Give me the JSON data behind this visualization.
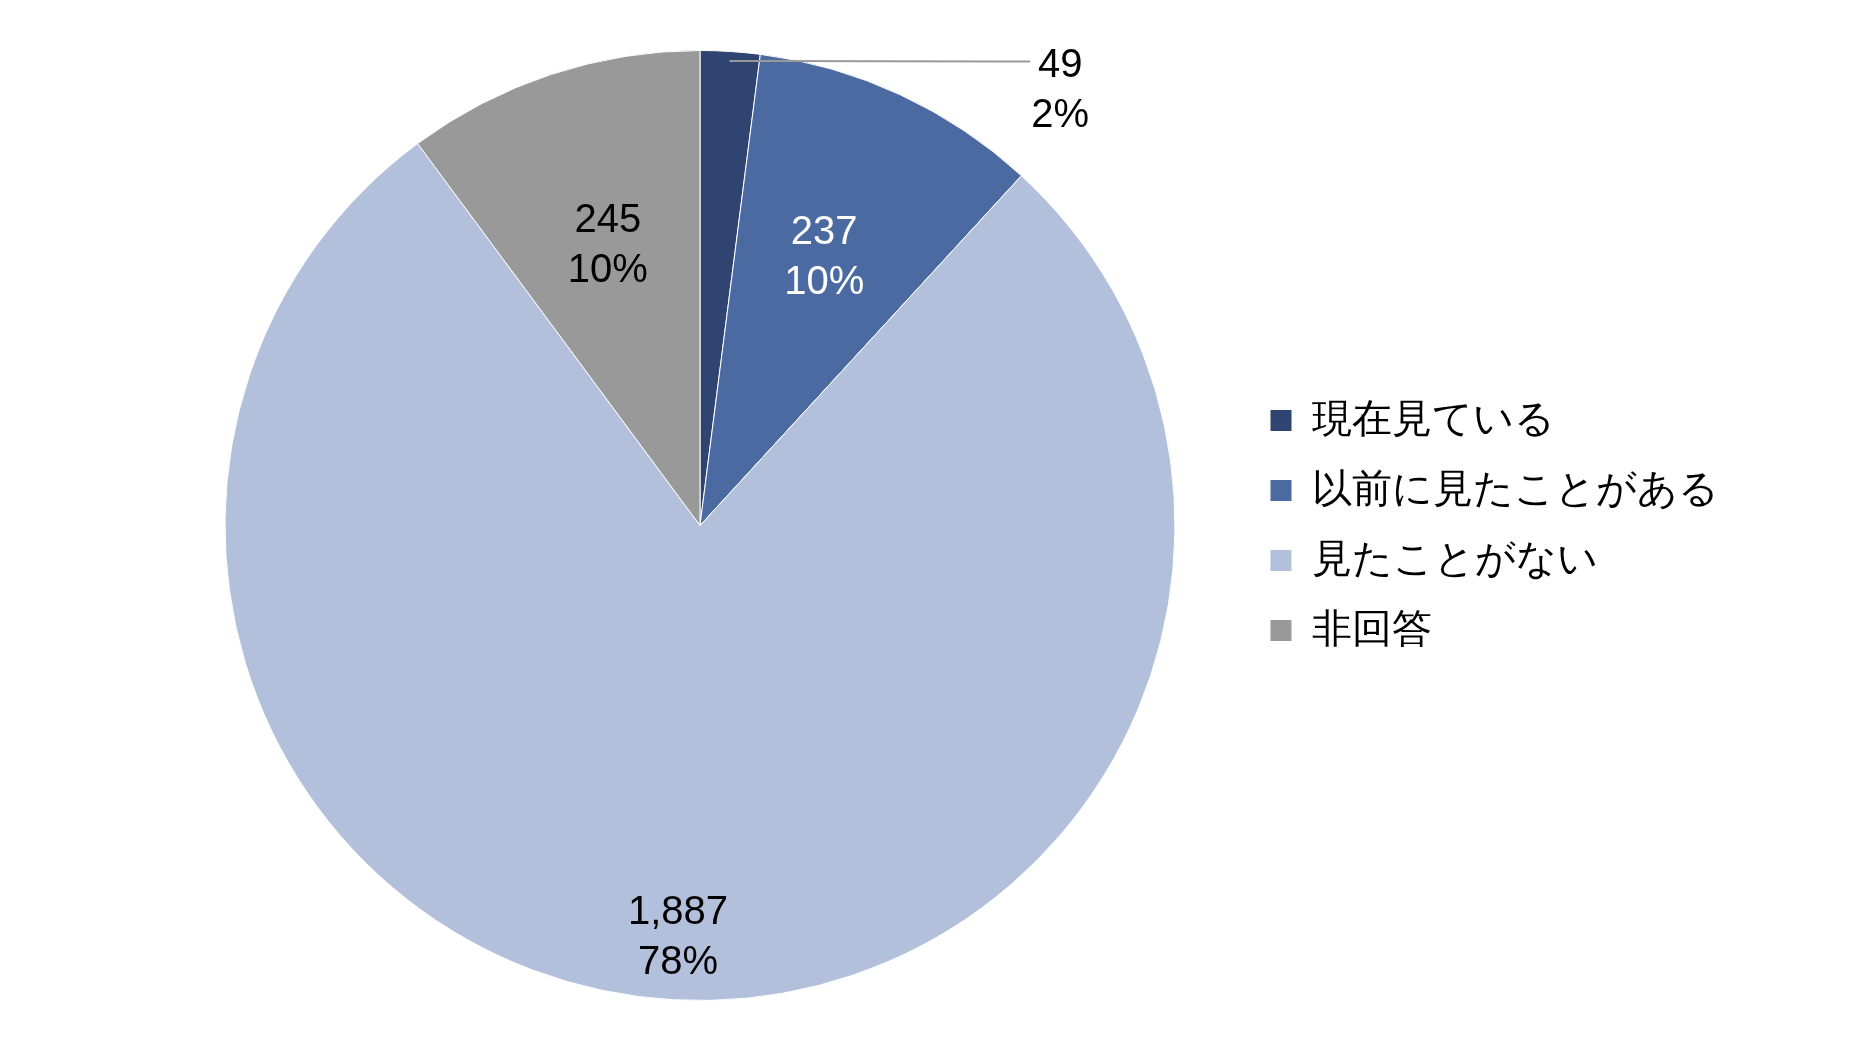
{
  "chart_data": {
    "type": "pie",
    "categories": [
      "現在見ている",
      "以前に見たことがある",
      "見たことがない",
      "非回答"
    ],
    "values": [
      49,
      237,
      1887,
      245
    ],
    "colors": [
      "#2f4470",
      "#4b6aa2",
      "#b2c0db",
      "#999999"
    ],
    "value_labels": [
      "49\n2%",
      "237\n10%",
      "1,887\n78%",
      "245\n10%"
    ],
    "legend": "right"
  }
}
